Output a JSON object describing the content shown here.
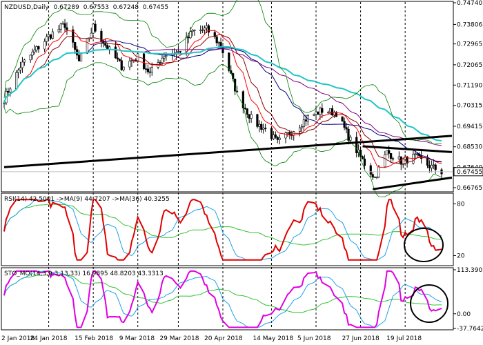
{
  "chart_data": {
    "type": "candlestick",
    "symbol": "NZDUSD",
    "timeframe": "Daily",
    "header_prices": [
      "0.67289",
      "0.67553",
      "0.67248",
      "0.67455"
    ],
    "current_price": "0.67455",
    "price_axis_ticks": [
      "0.74740",
      "0.73806",
      "0.72965",
      "0.72065",
      "0.71190",
      "0.70315",
      "0.69415",
      "0.68530",
      "0.67640",
      "0.66765"
    ],
    "x_tick_labels": [
      "2 Jan 2018",
      "24 Jan 2018",
      "15 Feb 2018",
      "9 Mar 2018",
      "29 Mar 2018",
      "20 Apr 2018",
      "14 May 2018",
      "5 Jun 2018",
      "27 Jun 2018",
      "19 Jul 2018"
    ],
    "price_series": {
      "start": "2018-01-02",
      "end": "2018-08-06",
      "trend_anchors": [
        [
          "2018-01-02",
          0.706
        ],
        [
          "2018-01-10",
          0.72
        ],
        [
          "2018-01-24",
          0.733
        ],
        [
          "2018-02-01",
          0.738
        ],
        [
          "2018-02-08",
          0.722
        ],
        [
          "2018-02-15",
          0.737
        ],
        [
          "2018-02-22",
          0.728
        ],
        [
          "2018-03-01",
          0.72
        ],
        [
          "2018-03-09",
          0.724
        ],
        [
          "2018-03-15",
          0.717
        ],
        [
          "2018-03-22",
          0.725
        ],
        [
          "2018-03-29",
          0.726
        ],
        [
          "2018-04-05",
          0.735
        ],
        [
          "2018-04-12",
          0.736
        ],
        [
          "2018-04-19",
          0.729
        ],
        [
          "2018-04-27",
          0.708
        ],
        [
          "2018-05-05",
          0.696
        ],
        [
          "2018-05-11",
          0.693
        ],
        [
          "2018-05-17",
          0.687
        ],
        [
          "2018-05-24",
          0.692
        ],
        [
          "2018-06-01",
          0.698
        ],
        [
          "2018-06-08",
          0.701
        ],
        [
          "2018-06-15",
          0.7
        ],
        [
          "2018-06-22",
          0.688
        ],
        [
          "2018-06-29",
          0.678
        ],
        [
          "2018-07-04",
          0.672
        ],
        [
          "2018-07-10",
          0.683
        ],
        [
          "2018-07-17",
          0.679
        ],
        [
          "2018-07-24",
          0.681
        ],
        [
          "2018-07-31",
          0.677
        ],
        [
          "2018-08-06",
          0.6745
        ]
      ],
      "support_line": [
        [
          "2018-01-02",
          0.6765
        ],
        [
          "2018-08-06",
          0.69
        ]
      ],
      "channel_top": [
        [
          "2018-06-28",
          0.6855
        ],
        [
          "2018-08-06",
          0.683
        ]
      ],
      "channel_bottom": [
        [
          "2018-07-03",
          0.667
        ],
        [
          "2018-08-06",
          0.672
        ]
      ],
      "ma_colors": [
        "#ff0000",
        "#8b0000",
        "#000080",
        "#800080",
        "#20c5c5",
        "#008000"
      ]
    },
    "rsi": {
      "label": "RSI(14) 42.5001 ->MA(9) 44.7207 ->MA(36) 40.3255",
      "axis_ticks": [
        "80",
        "20"
      ],
      "main_color": "#e00000",
      "ma_fast_color": "#1ea0e6",
      "ma_slow_color": "#33c233"
    },
    "stochastic": {
      "label": "STO_MO(14,3,9,3,13,33) 16.9895 48.8203 43.3313",
      "axis_ticks": [
        "113.3902",
        "0.00",
        "-37.7642"
      ],
      "main_color": "#e000e0",
      "signal_color": "#1ea0e6",
      "ma_color": "#33c233"
    }
  }
}
